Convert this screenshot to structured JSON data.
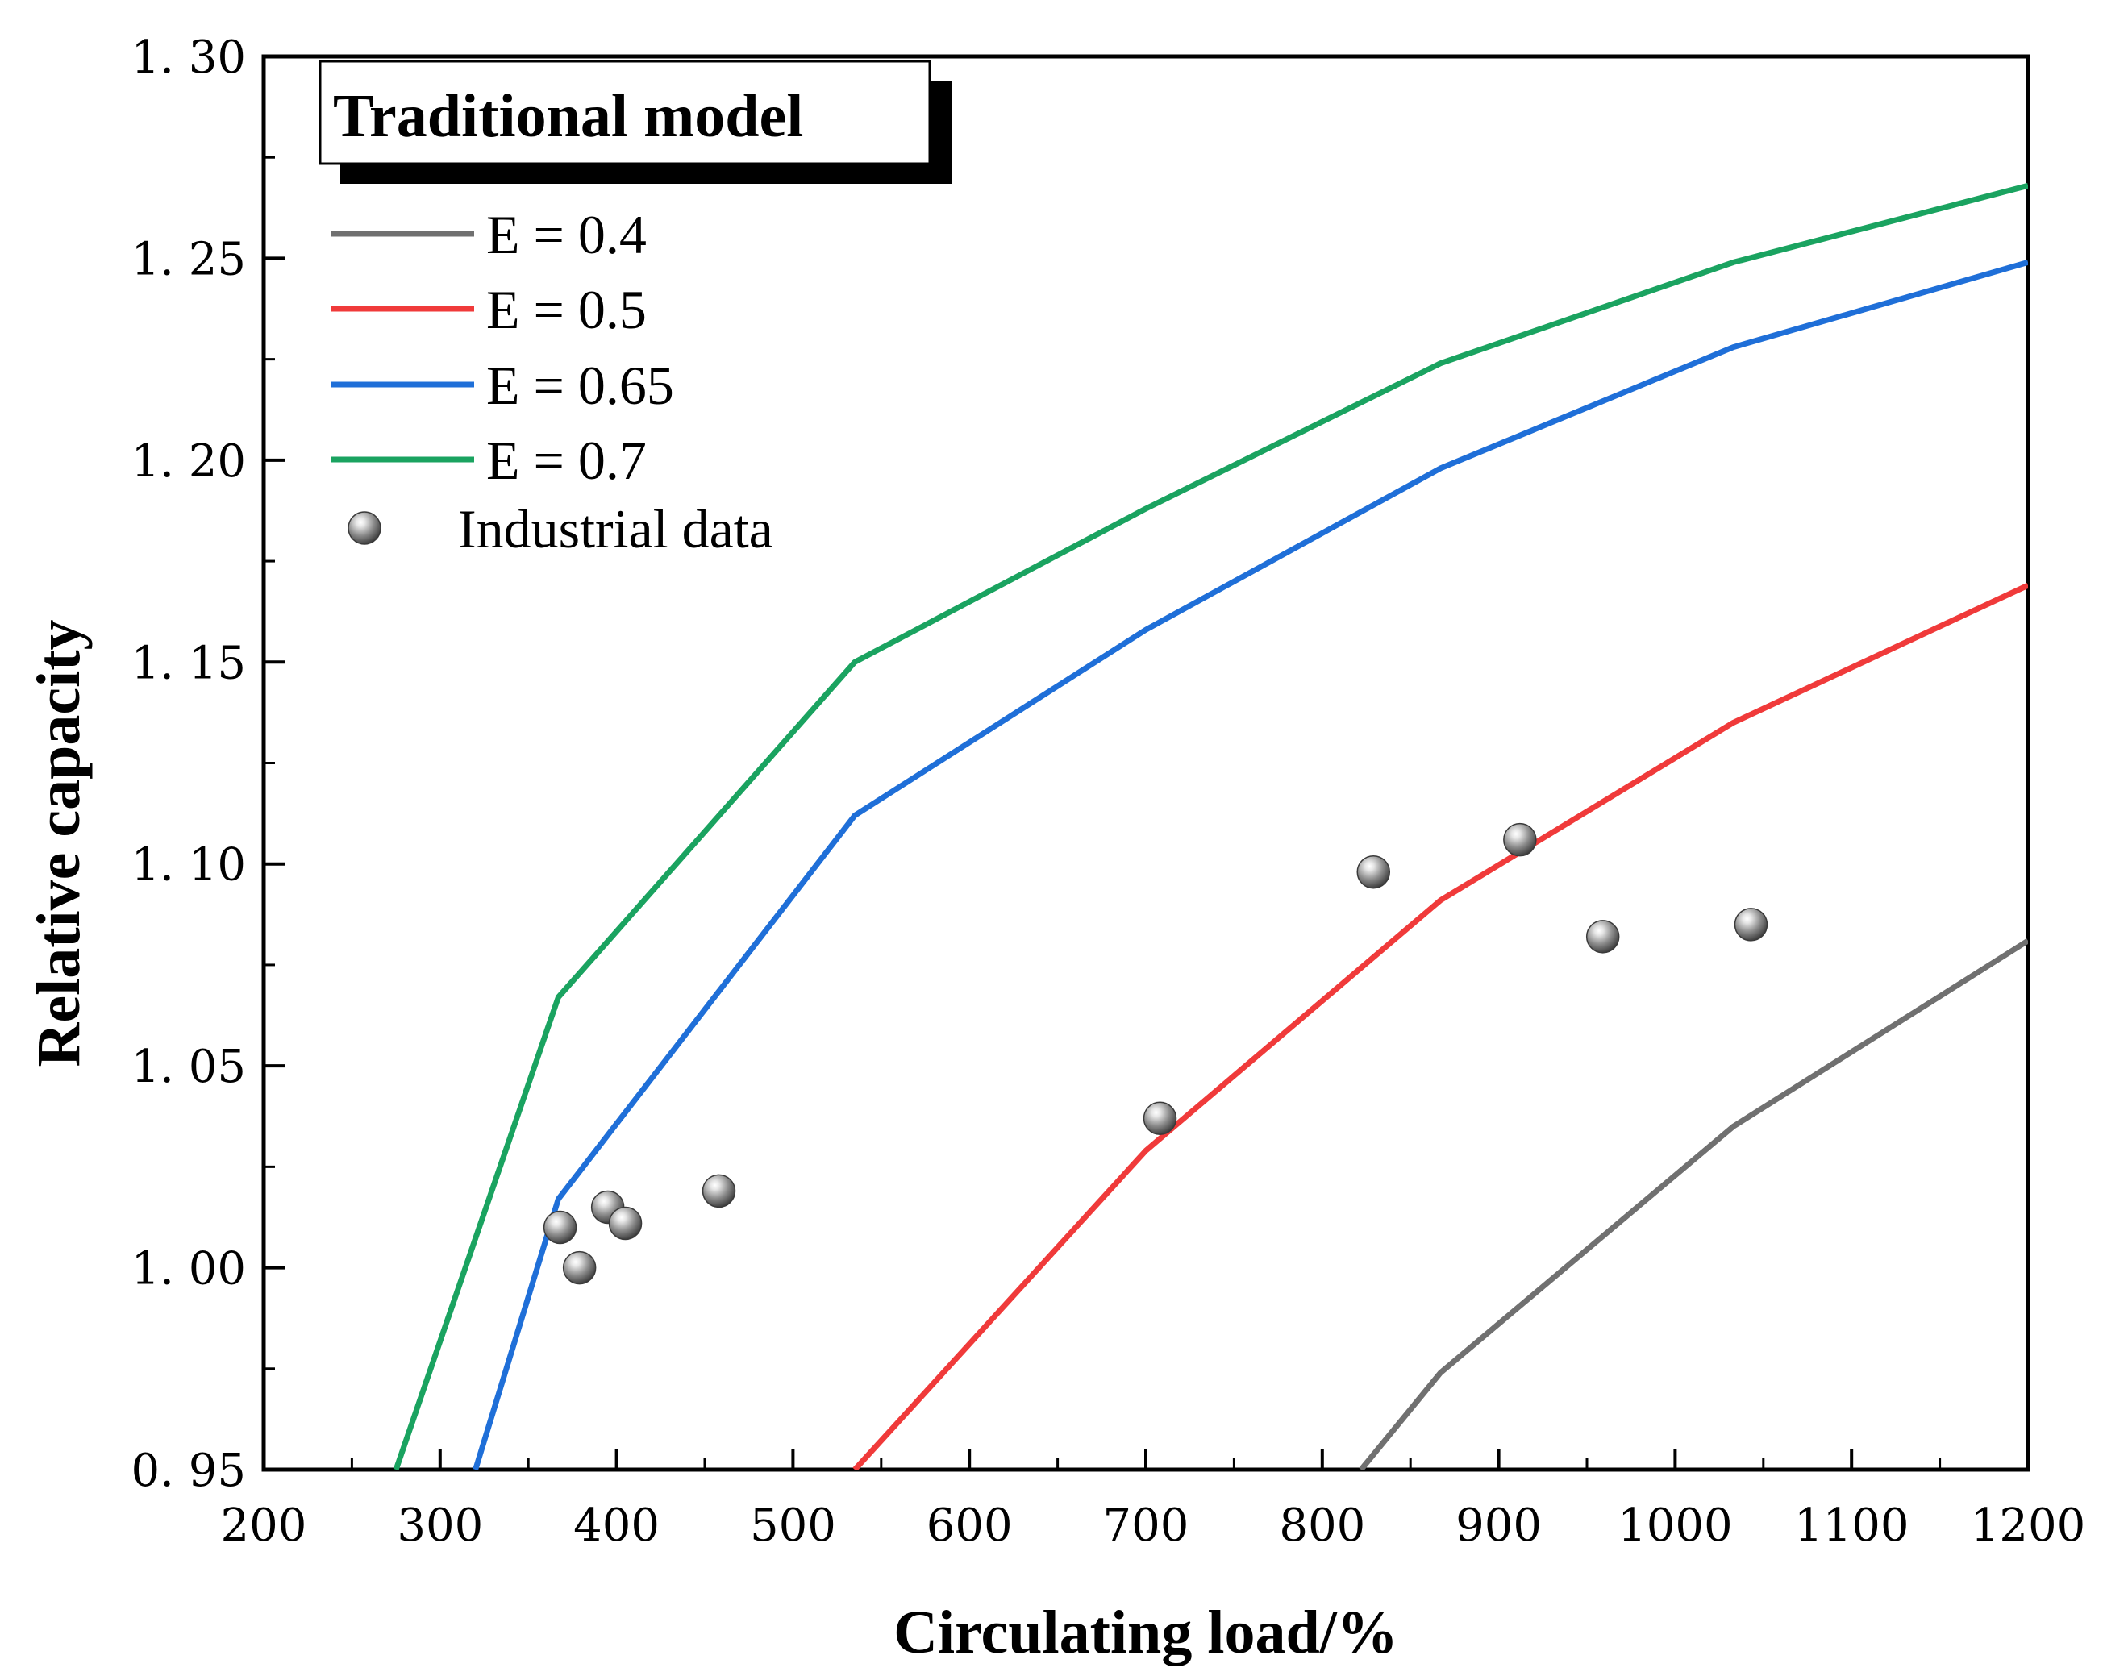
{
  "chart_data": {
    "type": "line",
    "title": "Traditional model",
    "xlabel": "Circulating load/%",
    "ylabel": "Relative capacity",
    "xlim": [
      200,
      1200
    ],
    "ylim": [
      0.95,
      1.3
    ],
    "x_ticks": [
      200,
      300,
      400,
      500,
      600,
      700,
      800,
      900,
      1000,
      1100,
      1200
    ],
    "x_tick_labels": [
      "200",
      "300",
      "400",
      "500",
      "600",
      "700",
      "800",
      "900",
      "1000",
      "1100",
      "1200"
    ],
    "y_ticks": [
      0.95,
      1.0,
      1.05,
      1.1,
      1.15,
      1.2,
      1.25,
      1.3
    ],
    "y_tick_labels": [
      "0. 95",
      "1. 00",
      "1. 05",
      "1. 10",
      "1. 15",
      "1. 20",
      "1. 25",
      "1. 30"
    ],
    "legend_position": "top-left",
    "series": [
      {
        "name": "E = 0.4",
        "color": "#707070",
        "x": [
          822,
          867,
          1033,
          1200
        ],
        "y": [
          0.95,
          0.974,
          1.035,
          1.081
        ]
      },
      {
        "name": "E = 0.5",
        "color": "#f03a3a",
        "x": [
          535,
          700,
          867,
          1033,
          1200
        ],
        "y": [
          0.95,
          1.029,
          1.091,
          1.135,
          1.169
        ]
      },
      {
        "name": "E = 0.65",
        "color": "#1f6fd8",
        "x": [
          320,
          367,
          535,
          700,
          867,
          1033,
          1200
        ],
        "y": [
          0.95,
          1.017,
          1.112,
          1.158,
          1.198,
          1.228,
          1.249
        ]
      },
      {
        "name": "E = 0.7",
        "color": "#1aa360",
        "x": [
          275,
          367,
          535,
          700,
          867,
          1033,
          1200
        ],
        "y": [
          0.95,
          1.067,
          1.15,
          1.188,
          1.224,
          1.249,
          1.268
        ]
      }
    ],
    "scatter": {
      "name": "Industrial data",
      "color": "#808080",
      "x": [
        368,
        379,
        395,
        405,
        458,
        708,
        829,
        912,
        959,
        1043
      ],
      "y": [
        1.01,
        1.0,
        1.015,
        1.011,
        1.019,
        1.037,
        1.098,
        1.106,
        1.082,
        1.085
      ]
    }
  }
}
